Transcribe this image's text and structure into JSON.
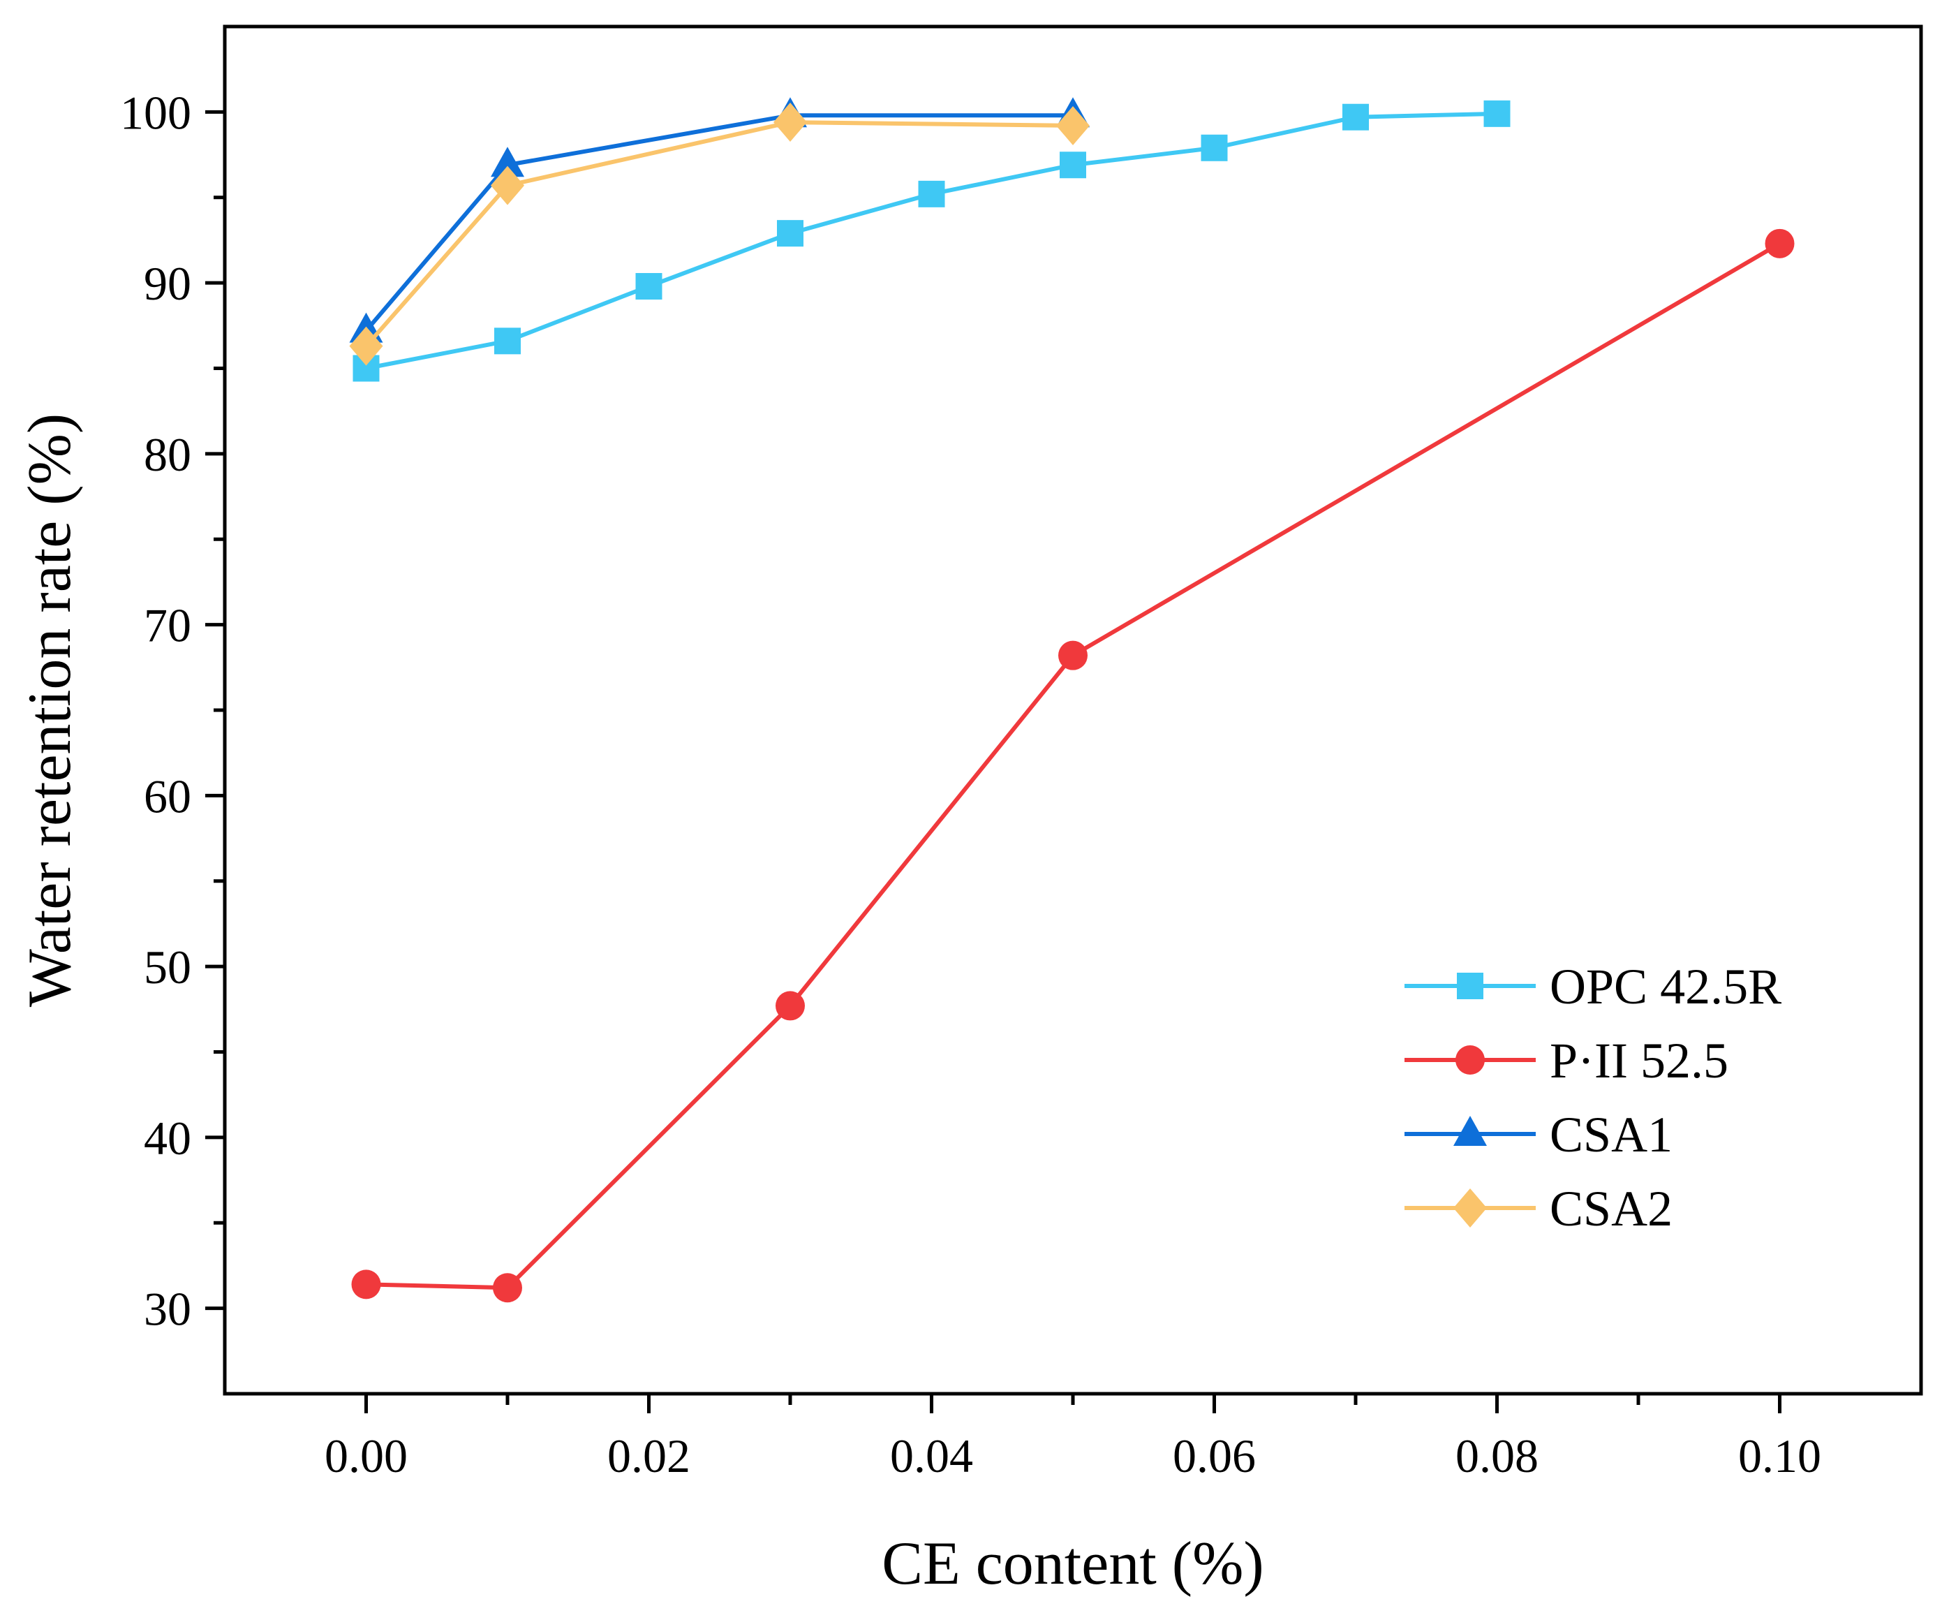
{
  "chart_data": {
    "type": "line",
    "title": "",
    "xlabel": "CE content (%)",
    "ylabel": "Water retention rate (%)",
    "xlim": [
      -0.01,
      0.11
    ],
    "ylim": [
      25,
      105
    ],
    "xticks": [
      0.0,
      0.02,
      0.04,
      0.06,
      0.08,
      0.1
    ],
    "xtick_labels": [
      "0.00",
      "0.02",
      "0.04",
      "0.06",
      "0.08",
      "0.10"
    ],
    "xminor": [
      0.01,
      0.03,
      0.05,
      0.07,
      0.09
    ],
    "yticks": [
      30,
      40,
      50,
      60,
      70,
      80,
      90,
      100
    ],
    "ytick_labels": [
      "30",
      "40",
      "50",
      "60",
      "70",
      "80",
      "90",
      "100"
    ],
    "yminor": [
      35,
      45,
      55,
      65,
      75,
      85,
      95
    ],
    "grid": false,
    "legend_position": "bottom-right",
    "series": [
      {
        "name": "OPC 42.5R",
        "color": "#3fc8f4",
        "marker": "square",
        "x": [
          0.0,
          0.01,
          0.02,
          0.03,
          0.04,
          0.05,
          0.06,
          0.07,
          0.08
        ],
        "y": [
          85.0,
          86.6,
          89.8,
          92.9,
          95.2,
          96.9,
          97.9,
          99.7,
          99.9
        ]
      },
      {
        "name": "P·II 52.5",
        "color": "#f0393c",
        "marker": "circle",
        "x": [
          0.0,
          0.01,
          0.03,
          0.05,
          0.1
        ],
        "y": [
          31.4,
          31.2,
          47.7,
          68.2,
          92.3
        ]
      },
      {
        "name": "CSA1",
        "color": "#0e6fd9",
        "marker": "triangle",
        "x": [
          0.0,
          0.01,
          0.03,
          0.05
        ],
        "y": [
          87.2,
          96.9,
          99.8,
          99.8
        ]
      },
      {
        "name": "CSA2",
        "color": "#fac46b",
        "marker": "diamond",
        "x": [
          0.0,
          0.01,
          0.03,
          0.05
        ],
        "y": [
          86.3,
          95.7,
          99.4,
          99.2
        ]
      }
    ]
  }
}
